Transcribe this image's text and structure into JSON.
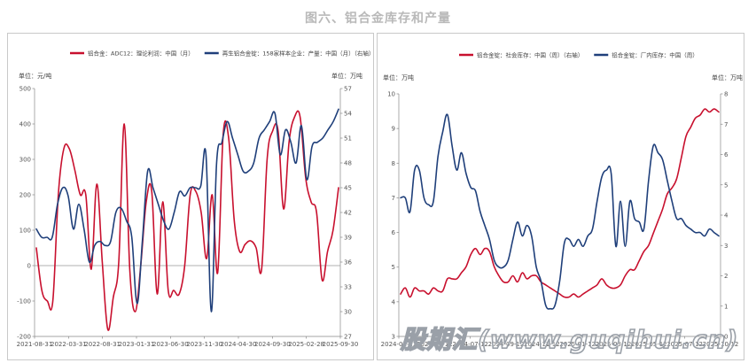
{
  "page_title": "图六、铝合金库存和产量",
  "watermark": "股期汇(www.guqihui.cn)",
  "colors": {
    "red": "#c8102e",
    "blue": "#1f3f7a",
    "axis": "#888888",
    "zero_line": "#999999"
  },
  "chart_data": [
    {
      "type": "line",
      "legend": [
        "铝合金：ADC12：理论利润：中国（月）",
        "再生铝合金锭：158家样本企业：产量：中国（月）（右轴）"
      ],
      "left_axis_unit": "单位：元/吨",
      "right_axis_unit": "单位：万吨",
      "x_ticks": [
        "2021-08-31",
        "2022-03-31",
        "2022-08-31",
        "2023-01-31",
        "2023-06-30",
        "2023-11-30",
        "2024-04-30",
        "2024-09-30",
        "2025-02-28",
        "2025-09-30"
      ],
      "ylim_left": [
        -200,
        500
      ],
      "yticks_left": [
        -200,
        -100,
        0,
        100,
        200,
        300,
        400,
        500
      ],
      "ylim_right": [
        27,
        57
      ],
      "yticks_right": [
        27,
        30,
        33,
        36,
        39,
        42,
        45,
        48,
        51,
        54,
        57
      ],
      "series": [
        {
          "name": "铝合金：ADC12：理论利润：中国（月）",
          "axis": "left",
          "color": "#c8102e",
          "points": [
            [
              0,
              50
            ],
            [
              1,
              -70
            ],
            [
              2,
              -100
            ],
            [
              3,
              -100
            ],
            [
              4,
              200
            ],
            [
              5,
              330
            ],
            [
              6,
              330
            ],
            [
              7,
              270
            ],
            [
              8,
              200
            ],
            [
              9,
              200
            ],
            [
              10,
              -10
            ],
            [
              11,
              230
            ],
            [
              12,
              10
            ],
            [
              13,
              -180
            ],
            [
              14,
              -90
            ],
            [
              15,
              10
            ],
            [
              16,
              400
            ],
            [
              17,
              -10
            ],
            [
              18,
              -130
            ],
            [
              19,
              0
            ],
            [
              20,
              180
            ],
            [
              21,
              210
            ],
            [
              22,
              -80
            ],
            [
              23,
              180
            ],
            [
              24,
              -70
            ],
            [
              25,
              -70
            ],
            [
              26,
              -80
            ],
            [
              27,
              0
            ],
            [
              28,
              200
            ],
            [
              29,
              210
            ],
            [
              30,
              150
            ],
            [
              31,
              20
            ],
            [
              32,
              200
            ],
            [
              33,
              -20
            ],
            [
              34,
              370
            ],
            [
              35,
              360
            ],
            [
              36,
              130
            ],
            [
              37,
              40
            ],
            [
              38,
              60
            ],
            [
              39,
              70
            ],
            [
              40,
              50
            ],
            [
              41,
              -10
            ],
            [
              42,
              300
            ],
            [
              43,
              380
            ],
            [
              44,
              380
            ],
            [
              45,
              160
            ],
            [
              46,
              350
            ],
            [
              47,
              420
            ],
            [
              48,
              420
            ],
            [
              49,
              250
            ],
            [
              50,
              180
            ],
            [
              51,
              150
            ],
            [
              52,
              -40
            ],
            [
              53,
              40
            ],
            [
              54,
              100
            ],
            [
              55,
              220
            ]
          ]
        },
        {
          "name": "再生铝合金锭：158家样本企业：产量：中国（月）（右轴）",
          "axis": "right",
          "color": "#1f3f7a",
          "points": [
            [
              0,
              40
            ],
            [
              1,
              39
            ],
            [
              2,
              39
            ],
            [
              3,
              39
            ],
            [
              4,
              43
            ],
            [
              5,
              45
            ],
            [
              6,
              44
            ],
            [
              7,
              40
            ],
            [
              8,
              43
            ],
            [
              9,
              40
            ],
            [
              10,
              36
            ],
            [
              11,
              38
            ],
            [
              12,
              38.5
            ],
            [
              13,
              38
            ],
            [
              14,
              38.5
            ],
            [
              15,
              42
            ],
            [
              16,
              42.5
            ],
            [
              17,
              41
            ],
            [
              18,
              39
            ],
            [
              19,
              31
            ],
            [
              20,
              38.5
            ],
            [
              21,
              47
            ],
            [
              22,
              45
            ],
            [
              23,
              43
            ],
            [
              24,
              41
            ],
            [
              25,
              40
            ],
            [
              26,
              42
            ],
            [
              27,
              44.5
            ],
            [
              28,
              44
            ],
            [
              29,
              45
            ],
            [
              30,
              45
            ],
            [
              31,
              45.2
            ],
            [
              32,
              49
            ],
            [
              33,
              30
            ],
            [
              34,
              48
            ],
            [
              35,
              50.5
            ],
            [
              36,
              53
            ],
            [
              37,
              51
            ],
            [
              38,
              49
            ],
            [
              39,
              47
            ],
            [
              40,
              47
            ],
            [
              41,
              48
            ],
            [
              42,
              51
            ],
            [
              43,
              52
            ],
            [
              44,
              53
            ],
            [
              45,
              54
            ],
            [
              46,
              49
            ],
            [
              47,
              52
            ],
            [
              48,
              50.5
            ],
            [
              49,
              48
            ],
            [
              50,
              52.5
            ],
            [
              51,
              46
            ],
            [
              52,
              50
            ],
            [
              53,
              50.5
            ],
            [
              54,
              51
            ],
            [
              55,
              52
            ],
            [
              56,
              53
            ],
            [
              57,
              54.5
            ]
          ]
        }
      ]
    },
    {
      "type": "line",
      "legend": [
        "铝合金锭：社会库存：中国（周）（右轴）",
        "铝合金锭：厂内库存：中国（周）"
      ],
      "left_axis_unit": "单位：万吨",
      "right_axis_unit": "单位：万吨",
      "x_ticks": [
        "2024-01-12",
        "2024-04-12",
        "2024-07-12",
        "2024-09-12",
        "2024-11-12",
        "2025-01-12",
        "2025-03-12",
        "2025-05-12",
        "2025-07-12",
        "2025-10-12"
      ],
      "ylim_left": [
        3,
        10
      ],
      "yticks_left": [
        3,
        4,
        5,
        6,
        7,
        8,
        9,
        10
      ],
      "ylim_right": [
        0,
        8
      ],
      "yticks_right": [
        0,
        1,
        2,
        3,
        4,
        5,
        6,
        7,
        8
      ],
      "series": [
        {
          "name": "铝合金锭：社会库存：中国（周）（右轴）",
          "axis": "right",
          "color": "#c8102e",
          "points": [
            [
              0,
              1.4
            ],
            [
              2,
              1.6
            ],
            [
              4,
              1.3
            ],
            [
              6,
              1.6
            ],
            [
              8,
              1.5
            ],
            [
              10,
              1.5
            ],
            [
              12,
              1.4
            ],
            [
              14,
              1.6
            ],
            [
              16,
              1.5
            ],
            [
              18,
              1.5
            ],
            [
              20,
              1.9
            ],
            [
              22,
              1.9
            ],
            [
              24,
              1.9
            ],
            [
              26,
              2.1
            ],
            [
              28,
              2.3
            ],
            [
              30,
              2.7
            ],
            [
              32,
              2.9
            ],
            [
              34,
              2.7
            ],
            [
              36,
              2.9
            ],
            [
              38,
              2.8
            ],
            [
              40,
              2.3
            ],
            [
              42,
              2.0
            ],
            [
              44,
              1.8
            ],
            [
              46,
              1.8
            ],
            [
              48,
              2.0
            ],
            [
              50,
              1.8
            ],
            [
              52,
              2.1
            ],
            [
              54,
              1.9
            ],
            [
              56,
              2.0
            ],
            [
              58,
              2.0
            ],
            [
              60,
              1.8
            ],
            [
              62,
              1.7
            ],
            [
              64,
              1.6
            ],
            [
              66,
              1.5
            ],
            [
              68,
              1.4
            ],
            [
              70,
              1.3
            ],
            [
              72,
              1.3
            ],
            [
              74,
              1.4
            ],
            [
              76,
              1.3
            ],
            [
              78,
              1.4
            ],
            [
              80,
              1.5
            ],
            [
              82,
              1.6
            ],
            [
              84,
              1.7
            ],
            [
              86,
              1.9
            ],
            [
              88,
              1.7
            ],
            [
              90,
              1.6
            ],
            [
              92,
              1.6
            ],
            [
              94,
              1.7
            ],
            [
              96,
              2.0
            ],
            [
              98,
              2.2
            ],
            [
              100,
              2.2
            ],
            [
              102,
              2.5
            ],
            [
              104,
              2.8
            ],
            [
              106,
              3.0
            ],
            [
              108,
              3.4
            ],
            [
              110,
              3.8
            ],
            [
              112,
              4.2
            ],
            [
              114,
              4.7
            ],
            [
              116,
              4.9
            ],
            [
              118,
              5.2
            ],
            [
              120,
              5.9
            ],
            [
              122,
              6.6
            ],
            [
              124,
              6.9
            ],
            [
              126,
              7.2
            ],
            [
              128,
              7.3
            ],
            [
              130,
              7.5
            ],
            [
              132,
              7.4
            ],
            [
              134,
              7.5
            ],
            [
              136,
              7.4
            ]
          ]
        },
        {
          "name": "铝合金锭：厂内库存：中国（周）",
          "axis": "left",
          "color": "#1f3f7a",
          "points": [
            [
              0,
              7.0
            ],
            [
              2,
              7.0
            ],
            [
              4,
              6.6
            ],
            [
              6,
              7.8
            ],
            [
              8,
              7.8
            ],
            [
              10,
              7.0
            ],
            [
              12,
              6.8
            ],
            [
              14,
              6.9
            ],
            [
              16,
              8.2
            ],
            [
              18,
              8.9
            ],
            [
              20,
              9.4
            ],
            [
              22,
              8.5
            ],
            [
              24,
              7.8
            ],
            [
              26,
              8.3
            ],
            [
              28,
              7.7
            ],
            [
              30,
              7.3
            ],
            [
              32,
              7.2
            ],
            [
              34,
              6.6
            ],
            [
              36,
              6.2
            ],
            [
              38,
              5.8
            ],
            [
              40,
              5.2
            ],
            [
              42,
              5.0
            ],
            [
              44,
              5.0
            ],
            [
              46,
              5.2
            ],
            [
              48,
              5.8
            ],
            [
              50,
              6.3
            ],
            [
              52,
              5.9
            ],
            [
              54,
              6.2
            ],
            [
              56,
              5.9
            ],
            [
              58,
              5.0
            ],
            [
              60,
              4.6
            ],
            [
              62,
              3.9
            ],
            [
              64,
              3.8
            ],
            [
              66,
              3.9
            ],
            [
              68,
              4.6
            ],
            [
              70,
              5.7
            ],
            [
              72,
              5.8
            ],
            [
              74,
              5.6
            ],
            [
              76,
              5.8
            ],
            [
              78,
              5.6
            ],
            [
              80,
              5.9
            ],
            [
              82,
              6.1
            ],
            [
              84,
              6.9
            ],
            [
              86,
              7.6
            ],
            [
              88,
              7.8
            ],
            [
              90,
              7.7
            ],
            [
              92,
              5.6
            ],
            [
              94,
              6.9
            ],
            [
              96,
              5.6
            ],
            [
              98,
              6.9
            ],
            [
              100,
              6.4
            ],
            [
              102,
              6.3
            ],
            [
              104,
              6.1
            ],
            [
              106,
              7.5
            ],
            [
              108,
              8.5
            ],
            [
              110,
              8.3
            ],
            [
              112,
              8.1
            ],
            [
              114,
              7.5
            ],
            [
              116,
              6.9
            ],
            [
              118,
              6.4
            ],
            [
              120,
              6.4
            ],
            [
              122,
              6.2
            ],
            [
              124,
              6.1
            ],
            [
              126,
              6.0
            ],
            [
              128,
              6.0
            ],
            [
              130,
              5.9
            ],
            [
              132,
              6.1
            ],
            [
              134,
              6.0
            ],
            [
              136,
              5.9
            ]
          ]
        }
      ]
    }
  ]
}
